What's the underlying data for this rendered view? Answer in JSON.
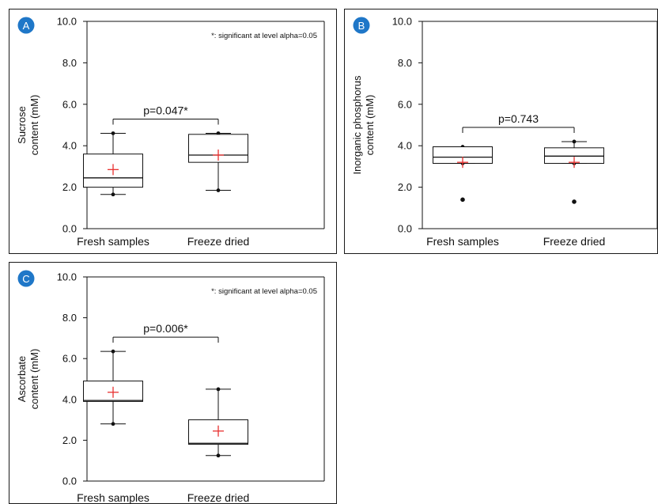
{
  "colors": {
    "badge": "#1f77c8",
    "badge_text": "#ffffff",
    "mean_marker": "#e8312f",
    "ink": "#111111"
  },
  "chart_data": [
    {
      "panel": "A",
      "type": "box",
      "categories": [
        "Fresh samples",
        "Freeze dried"
      ],
      "ylabel_lines": [
        "Sucrose",
        "content (mM)"
      ],
      "ylim": [
        0,
        10
      ],
      "yticks": [
        "0.0",
        "2.0",
        "4.0",
        "6.0",
        "8.0",
        "10.0"
      ],
      "note": "*: significant at level alpha=0.05",
      "pvalue": "p=0.047*",
      "boxes": [
        {
          "min": 1.65,
          "q1": 2.0,
          "median": 2.45,
          "q3": 3.6,
          "max": 4.6,
          "mean": 2.85,
          "outliers": []
        },
        {
          "min": 1.85,
          "q1": 3.2,
          "median": 3.55,
          "q3": 4.55,
          "max": 4.6,
          "mean": 3.55,
          "outliers": []
        }
      ]
    },
    {
      "panel": "B",
      "type": "box",
      "categories": [
        "Fresh samples",
        "Freeze dried"
      ],
      "ylabel_lines": [
        "Inorganic phosphorus",
        "content (mM)"
      ],
      "ylim": [
        0,
        10
      ],
      "yticks": [
        "0.0",
        "2.0",
        "4.0",
        "6.0",
        "8.0",
        "10.0"
      ],
      "note": "",
      "pvalue": "p=0.743",
      "boxes": [
        {
          "min": 3.15,
          "q1": 3.15,
          "median": 3.45,
          "q3": 3.95,
          "max": 3.95,
          "mean": 3.2,
          "outliers": [
            1.4
          ]
        },
        {
          "min": 3.15,
          "q1": 3.15,
          "median": 3.5,
          "q3": 3.9,
          "max": 4.2,
          "mean": 3.2,
          "outliers": [
            1.3
          ]
        }
      ]
    },
    {
      "panel": "C",
      "type": "box",
      "categories": [
        "Fresh samples",
        "Freeze dried"
      ],
      "ylabel_lines": [
        "Ascorbate",
        "content (mM)"
      ],
      "ylim": [
        0,
        10
      ],
      "yticks": [
        "0.0",
        "2.0",
        "4.0",
        "6.0",
        "8.0",
        "10.0"
      ],
      "note": "*: significant at level alpha=0.05",
      "pvalue": "p=0.006*",
      "boxes": [
        {
          "min": 2.8,
          "q1": 3.9,
          "median": 3.95,
          "q3": 4.9,
          "max": 6.35,
          "mean": 4.35,
          "outliers": []
        },
        {
          "min": 1.25,
          "q1": 1.8,
          "median": 1.85,
          "q3": 3.0,
          "max": 4.5,
          "mean": 2.45,
          "outliers": []
        }
      ]
    }
  ]
}
